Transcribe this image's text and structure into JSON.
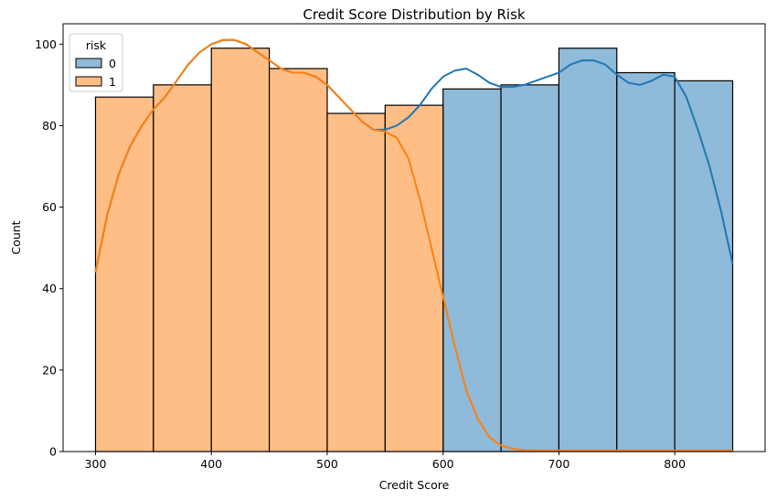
{
  "chart_data": {
    "type": "bar",
    "title": "Credit Score Distribution by Risk",
    "xlabel": "Credit Score",
    "ylabel": "Count",
    "xlim": [
      272,
      878
    ],
    "ylim": [
      0,
      105
    ],
    "xticks": [
      300,
      400,
      500,
      600,
      700,
      800
    ],
    "yticks": [
      0,
      20,
      40,
      60,
      80,
      100
    ],
    "bin_edges": [
      300,
      350,
      400,
      450,
      500,
      550,
      600,
      650,
      700,
      750,
      800,
      850
    ],
    "legend": {
      "title": "risk",
      "position": "top-left"
    },
    "series": [
      {
        "name": "0",
        "color": "#1f77b4",
        "fill": "#8fbad9",
        "values": [
          0,
          0,
          0,
          0,
          0,
          0,
          89,
          90,
          99,
          93,
          91
        ]
      },
      {
        "name": "1",
        "color": "#ff7f0e",
        "fill": "#ffbe86",
        "values": [
          87,
          90,
          99,
          94,
          83,
          85,
          0,
          0,
          0,
          0,
          0
        ]
      }
    ],
    "kde": [
      {
        "series": "0",
        "color": "#1f77b4",
        "points": [
          [
            300,
            44
          ],
          [
            310,
            58
          ],
          [
            320,
            68
          ],
          [
            330,
            75
          ],
          [
            340,
            80
          ],
          [
            350,
            84
          ],
          [
            360,
            87
          ],
          [
            370,
            91
          ],
          [
            380,
            95
          ],
          [
            390,
            98
          ],
          [
            400,
            100
          ],
          [
            410,
            101
          ],
          [
            420,
            101
          ],
          [
            430,
            100
          ],
          [
            440,
            98
          ],
          [
            450,
            96
          ],
          [
            460,
            94
          ],
          [
            470,
            93
          ],
          [
            480,
            93
          ],
          [
            490,
            92
          ],
          [
            500,
            90
          ],
          [
            510,
            87
          ],
          [
            520,
            84
          ],
          [
            530,
            81
          ],
          [
            540,
            79
          ],
          [
            550,
            79
          ],
          [
            560,
            80
          ],
          [
            570,
            82
          ],
          [
            580,
            85
          ],
          [
            590,
            89
          ],
          [
            600,
            92
          ],
          [
            610,
            93.5
          ],
          [
            620,
            94
          ],
          [
            630,
            92.5
          ],
          [
            640,
            90.5
          ],
          [
            650,
            89.5
          ],
          [
            660,
            89.5
          ],
          [
            670,
            90
          ],
          [
            680,
            91
          ],
          [
            690,
            92
          ],
          [
            700,
            93
          ],
          [
            710,
            95
          ],
          [
            720,
            96
          ],
          [
            730,
            96
          ],
          [
            740,
            95
          ],
          [
            750,
            92.5
          ],
          [
            760,
            90.5
          ],
          [
            770,
            90
          ],
          [
            780,
            91
          ],
          [
            790,
            92.5
          ],
          [
            800,
            92
          ],
          [
            810,
            87
          ],
          [
            820,
            79
          ],
          [
            830,
            70
          ],
          [
            840,
            59
          ],
          [
            850,
            46
          ]
        ]
      },
      {
        "series": "1",
        "color": "#ff7f0e",
        "points": [
          [
            300,
            44
          ],
          [
            310,
            58
          ],
          [
            320,
            68
          ],
          [
            330,
            75
          ],
          [
            340,
            80
          ],
          [
            350,
            84
          ],
          [
            360,
            87
          ],
          [
            370,
            91
          ],
          [
            380,
            95
          ],
          [
            390,
            98
          ],
          [
            400,
            100
          ],
          [
            410,
            101
          ],
          [
            420,
            101
          ],
          [
            430,
            100
          ],
          [
            440,
            98
          ],
          [
            450,
            96
          ],
          [
            460,
            94
          ],
          [
            470,
            93
          ],
          [
            480,
            93
          ],
          [
            490,
            92
          ],
          [
            500,
            90
          ],
          [
            510,
            87
          ],
          [
            520,
            84
          ],
          [
            530,
            81
          ],
          [
            540,
            79
          ],
          [
            550,
            78.5
          ],
          [
            560,
            77
          ],
          [
            570,
            72
          ],
          [
            580,
            62
          ],
          [
            590,
            50
          ],
          [
            600,
            38
          ],
          [
            610,
            26
          ],
          [
            620,
            15
          ],
          [
            630,
            8
          ],
          [
            640,
            3.5
          ],
          [
            650,
            1.5
          ],
          [
            660,
            0.7
          ],
          [
            670,
            0.4
          ],
          [
            680,
            0.3
          ],
          [
            700,
            0.3
          ],
          [
            750,
            0.3
          ],
          [
            800,
            0.3
          ],
          [
            850,
            0.3
          ]
        ]
      }
    ]
  }
}
